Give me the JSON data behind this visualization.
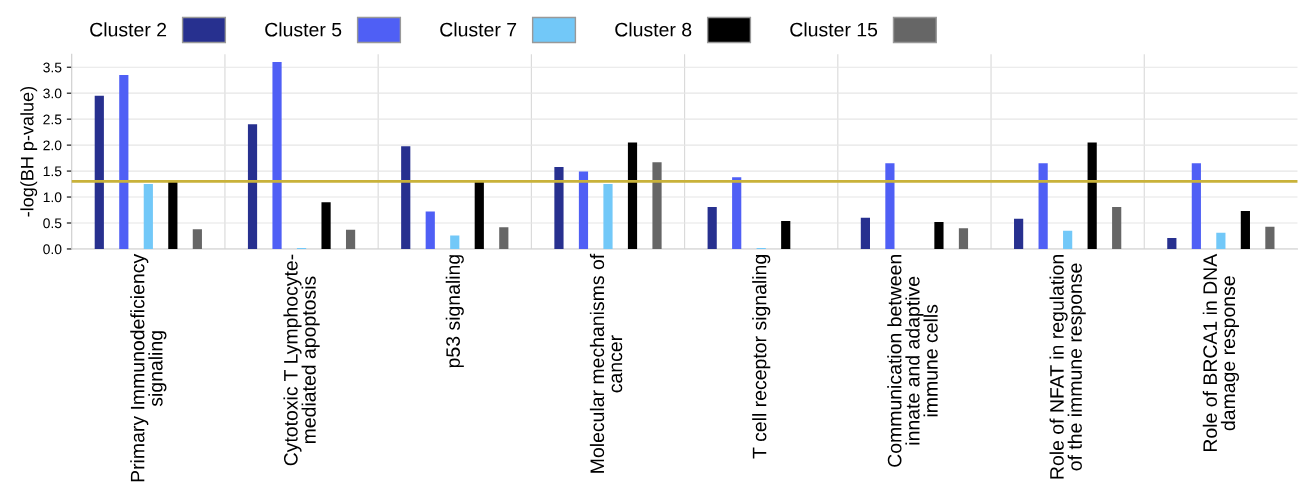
{
  "chart_data": {
    "type": "bar",
    "ylabel": "-log(BH p-value)",
    "categories": [
      "Primary Immunodeficiency\nsignaling",
      "Cytotoxic T Lymphocyte-\nmediated apoptosis",
      "p53 signaling",
      "Molecular mechanisms of\ncancer",
      "T cell receptor signaling",
      "Communication between\ninnate and adaptive\nimmune cells",
      "Role of NFAT in regulation\nof the immune response",
      "Role of BRCA1 in DNA\ndamage response"
    ],
    "series": [
      {
        "name": "Cluster 2",
        "color": "#27308f",
        "values": [
          2.95,
          2.4,
          1.98,
          1.58,
          0.81,
          0.6,
          0.58,
          0.21
        ]
      },
      {
        "name": "Cluster 5",
        "color": "#4f5ff5",
        "values": [
          3.35,
          3.6,
          0.72,
          1.49,
          1.38,
          1.65,
          1.65,
          1.65
        ]
      },
      {
        "name": "Cluster 7",
        "color": "#72c8f8",
        "values": [
          1.25,
          0.02,
          0.26,
          1.25,
          0.02,
          null,
          0.35,
          0.31
        ]
      },
      {
        "name": "Cluster 8",
        "color": "#000000",
        "values": [
          1.3,
          0.9,
          1.3,
          2.05,
          0.54,
          0.52,
          2.05,
          0.73
        ]
      },
      {
        "name": "Cluster 15",
        "color": "#666666",
        "values": [
          0.38,
          0.37,
          0.42,
          1.67,
          null,
          0.4,
          0.81,
          0.43
        ]
      }
    ],
    "ylim": [
      0,
      3.75
    ],
    "yticks": [
      {
        "value": 0,
        "label": "0.0"
      },
      0.5,
      {
        "value": 1,
        "label": "1.0"
      },
      1.5,
      {
        "value": 2,
        "label": "2.0"
      },
      2.5,
      {
        "value": 3,
        "label": "3.0"
      },
      3.5
    ],
    "ref_lines": [
      {
        "axis": "y",
        "value": 1.3,
        "color": "#c9b23a",
        "line_style": "solid"
      }
    ],
    "grid": true,
    "legend": "top left"
  }
}
